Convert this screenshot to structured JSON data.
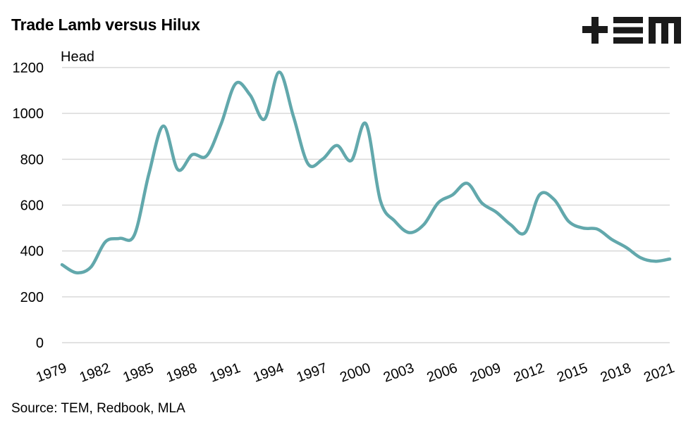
{
  "chart_data": {
    "type": "line",
    "title": "Trade Lamb versus Hilux",
    "xlabel": "",
    "ylabel": "Head",
    "source": "Source: TEM, Redbook, MLA",
    "ylim": [
      0,
      1200
    ],
    "yticks": [
      0,
      200,
      400,
      600,
      800,
      1000,
      1200
    ],
    "xlim": [
      1979,
      2021
    ],
    "xticks": [
      1979,
      1982,
      1985,
      1988,
      1991,
      1994,
      1997,
      2000,
      2003,
      2006,
      2009,
      2012,
      2015,
      2018,
      2021
    ],
    "grid": "horizontal",
    "series": [
      {
        "color": "#62a8ac",
        "x": [
          1979,
          1980,
          1981,
          1982,
          1983,
          1984,
          1985,
          1986,
          1987,
          1988,
          1989,
          1990,
          1991,
          1992,
          1993,
          1994,
          1995,
          1996,
          1997,
          1998,
          1999,
          2000,
          2001,
          2002,
          2003,
          2004,
          2005,
          2006,
          2007,
          2008,
          2009,
          2010,
          2011,
          2012,
          2013,
          2014,
          2015,
          2016,
          2017,
          2018,
          2019,
          2020,
          2021
        ],
        "values": [
          340,
          305,
          330,
          440,
          455,
          470,
          735,
          945,
          755,
          820,
          815,
          955,
          1130,
          1080,
          975,
          1180,
          985,
          780,
          800,
          860,
          795,
          955,
          620,
          530,
          480,
          515,
          610,
          645,
          695,
          610,
          570,
          515,
          480,
          645,
          625,
          530,
          500,
          495,
          450,
          415,
          370,
          355,
          365
        ]
      }
    ]
  },
  "logo": {
    "text": "+EM",
    "color": "#1a1a1a"
  }
}
